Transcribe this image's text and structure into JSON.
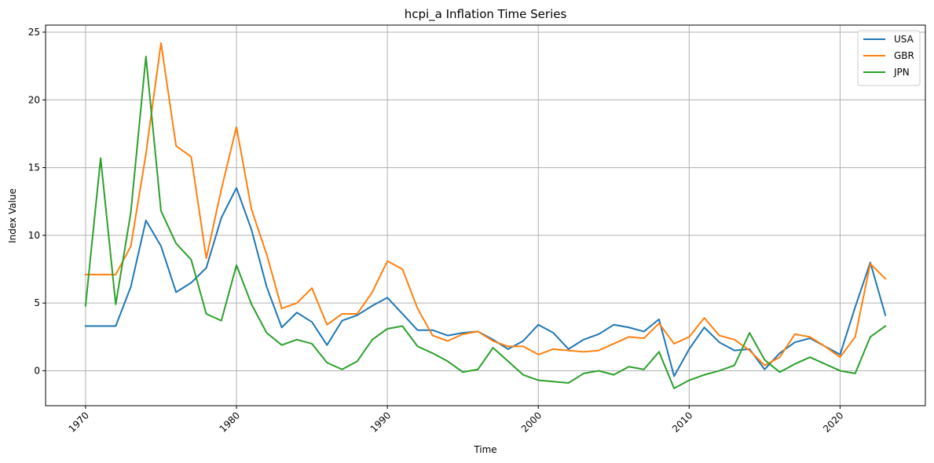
{
  "chart_data": {
    "type": "line",
    "title": "hcpi_a Inflation Time Series",
    "xlabel": "Time",
    "ylabel": "Index Value",
    "x": [
      1970,
      1971,
      1972,
      1973,
      1974,
      1975,
      1976,
      1977,
      1978,
      1979,
      1980,
      1981,
      1982,
      1983,
      1984,
      1985,
      1986,
      1987,
      1988,
      1989,
      1990,
      1991,
      1992,
      1993,
      1994,
      1995,
      1996,
      1997,
      1998,
      1999,
      2000,
      2001,
      2002,
      2003,
      2004,
      2005,
      2006,
      2007,
      2008,
      2009,
      2010,
      2011,
      2012,
      2013,
      2014,
      2015,
      2016,
      2017,
      2018,
      2019,
      2020,
      2021,
      2022,
      2023
    ],
    "xlim": [
      1967.35,
      1925.65
    ],
    "xticks": [
      1970,
      1980,
      1990,
      2000,
      2010,
      2020
    ],
    "xtick_labels": [
      "1970",
      "1980",
      "1990",
      "2000",
      "2010",
      "2020"
    ],
    "ylim": [
      -2.58,
      25.52
    ],
    "yticks": [
      0,
      5,
      10,
      15,
      20,
      25
    ],
    "ytick_labels": [
      "0",
      "5",
      "10",
      "15",
      "20",
      "25"
    ],
    "grid": true,
    "legend_position": "top-right",
    "series": [
      {
        "name": "USA",
        "color": "#1f77b4",
        "values": [
          3.3,
          3.3,
          3.3,
          6.2,
          11.1,
          9.2,
          5.8,
          6.5,
          7.6,
          11.3,
          13.5,
          10.4,
          6.2,
          3.2,
          4.3,
          3.6,
          1.9,
          3.7,
          4.1,
          4.8,
          5.4,
          4.2,
          3.0,
          3.0,
          2.6,
          2.8,
          2.9,
          2.3,
          1.6,
          2.2,
          3.4,
          2.8,
          1.6,
          2.3,
          2.7,
          3.4,
          3.2,
          2.9,
          3.8,
          -0.4,
          1.6,
          3.2,
          2.1,
          1.5,
          1.6,
          0.1,
          1.3,
          2.1,
          2.4,
          1.8,
          1.2,
          4.7,
          8.0,
          4.1
        ]
      },
      {
        "name": "GBR",
        "color": "#ff7f0e",
        "values": [
          7.1,
          7.1,
          7.1,
          9.2,
          16.0,
          24.2,
          16.6,
          15.8,
          8.3,
          13.4,
          18.0,
          11.9,
          8.6,
          4.6,
          5.0,
          6.1,
          3.4,
          4.2,
          4.2,
          5.8,
          8.1,
          7.5,
          4.6,
          2.6,
          2.2,
          2.7,
          2.9,
          2.2,
          1.8,
          1.8,
          1.2,
          1.6,
          1.5,
          1.4,
          1.5,
          2.0,
          2.5,
          2.4,
          3.5,
          2.0,
          2.5,
          3.9,
          2.6,
          2.3,
          1.5,
          0.4,
          1.0,
          2.7,
          2.5,
          1.8,
          1.0,
          2.5,
          7.9,
          6.8
        ]
      },
      {
        "name": "JPN",
        "color": "#2ca02c",
        "values": [
          4.8,
          15.7,
          4.9,
          11.7,
          23.2,
          11.8,
          9.4,
          8.2,
          4.2,
          3.7,
          7.8,
          4.9,
          2.8,
          1.9,
          2.3,
          2.0,
          0.6,
          0.1,
          0.7,
          2.3,
          3.1,
          3.3,
          1.8,
          1.3,
          0.7,
          -0.1,
          0.1,
          1.7,
          0.7,
          -0.3,
          -0.7,
          -0.8,
          -0.9,
          -0.2,
          0.0,
          -0.3,
          0.3,
          0.1,
          1.4,
          -1.3,
          -0.7,
          -0.3,
          0.0,
          0.4,
          2.8,
          0.8,
          -0.1,
          0.5,
          1.0,
          0.5,
          0.0,
          -0.2,
          2.5,
          3.3
        ]
      }
    ]
  }
}
